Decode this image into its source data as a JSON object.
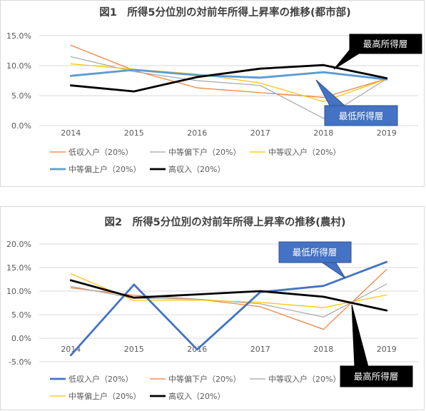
{
  "chart_data": [
    {
      "type": "line",
      "title": "図1　所得5分位別の対前年所得上昇率の推移(都市部)",
      "xlabel": "",
      "ylabel": "",
      "categories": [
        "2014",
        "2015",
        "2016",
        "2017",
        "2018",
        "2019"
      ],
      "ylim": [
        0,
        15
      ],
      "yticks": [
        "0.0%",
        "5.0%",
        "10.0%",
        "15.0%"
      ],
      "grid": true,
      "legend_position": "bottom",
      "series": [
        {
          "name": "低収入户（20%）",
          "values": [
            13.4,
            9.2,
            6.3,
            5.5,
            4.7,
            7.8
          ],
          "color": "#ED7D31",
          "width": 1.2
        },
        {
          "name": "中等偏下户（20%）",
          "values": [
            11.5,
            9.0,
            7.5,
            6.7,
            1.2,
            7.8
          ],
          "color": "#A5A5A5",
          "width": 1.2
        },
        {
          "name": "中等収入户（20%）",
          "values": [
            10.3,
            9.4,
            8.6,
            7.1,
            4.0,
            7.8
          ],
          "color": "#FFC000",
          "width": 1.2
        },
        {
          "name": "中等偏上户（20%）",
          "values": [
            8.3,
            9.3,
            8.4,
            8.0,
            8.9,
            7.7
          ],
          "color": "#5B9BD5",
          "width": 2.8
        },
        {
          "name": "高収入（20%）",
          "values": [
            6.7,
            5.7,
            8.1,
            9.5,
            10.1,
            7.9
          ],
          "color": "#000000",
          "width": 2.8
        }
      ],
      "callouts": [
        {
          "text": "最高所得層",
          "bg": "#000000",
          "fg": "#ffffff"
        },
        {
          "text": "最低所得層",
          "bg": "#4472C4",
          "fg": "#ffffff"
        }
      ]
    },
    {
      "type": "line",
      "title": "図2　所得5分位別の対前年所得上昇率の推移(農村)",
      "xlabel": "",
      "ylabel": "",
      "categories": [
        "2014",
        "2015",
        "2016",
        "2017",
        "2018",
        "2019"
      ],
      "ylim": [
        -5,
        20
      ],
      "yticks": [
        "-5.0%",
        "0.0%",
        "5.0%",
        "10.0%",
        "15.0%",
        "20.0%"
      ],
      "grid": true,
      "legend_position": "bottom",
      "series": [
        {
          "name": "低収入户（20%）",
          "values": [
            -3.6,
            11.4,
            -2.4,
            9.8,
            11.1,
            16.2
          ],
          "color": "#4472C4",
          "width": 2.8
        },
        {
          "name": "中等偏下户（20%）",
          "values": [
            10.7,
            9.1,
            8.3,
            6.7,
            1.9,
            14.6
          ],
          "color": "#ED7D31",
          "width": 1.2
        },
        {
          "name": "中等収入户（20%）",
          "values": [
            11.0,
            8.5,
            8.3,
            7.3,
            4.5,
            11.5
          ],
          "color": "#A5A5A5",
          "width": 1.2
        },
        {
          "name": "中等偏上户（20%）",
          "values": [
            13.7,
            8.0,
            8.1,
            7.6,
            6.5,
            9.2
          ],
          "color": "#FFC000",
          "width": 1.2
        },
        {
          "name": "高収入（20%）",
          "values": [
            12.3,
            8.6,
            9.3,
            10.0,
            8.8,
            5.9
          ],
          "color": "#000000",
          "width": 2.8
        }
      ],
      "callouts": [
        {
          "text": "最低所得層",
          "bg": "#4472C4",
          "fg": "#ffffff"
        },
        {
          "text": "最高所得層",
          "bg": "#000000",
          "fg": "#ffffff"
        }
      ]
    }
  ]
}
